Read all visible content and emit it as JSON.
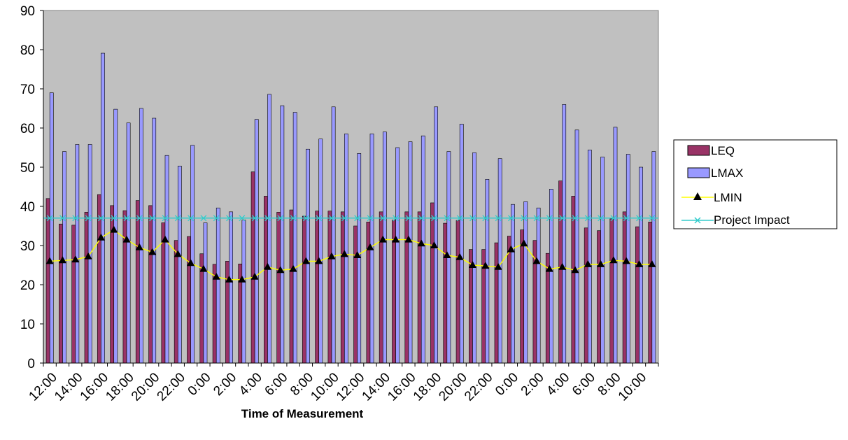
{
  "chart_data": {
    "type": "bar",
    "title": "",
    "xlabel": "Time  of Measurement",
    "ylabel": "",
    "ylim": [
      0,
      90
    ],
    "yticks": [
      0,
      10,
      20,
      30,
      40,
      50,
      60,
      70,
      80,
      90
    ],
    "grid": false,
    "legend_position": "right",
    "plot_background": "#c0c0c0",
    "x_tick_labels": [
      "12:00",
      "14:00",
      "16:00",
      "18:00",
      "20:00",
      "22:00",
      "0:00",
      "2:00",
      "4:00",
      "6:00",
      "8:00",
      "10:00",
      "12:00",
      "14:00",
      "16:00",
      "18:00",
      "20:00",
      "22:00",
      "0:00",
      "2:00",
      "4:00",
      "6:00",
      "8:00",
      "10:00"
    ],
    "series": [
      {
        "name": "LEQ",
        "kind": "bar",
        "color": "#993366",
        "values": [
          42.0,
          35.5,
          35.2,
          38.5,
          43.0,
          40.2,
          38.9,
          41.5,
          40.2,
          35.8,
          31.3,
          32.3,
          27.9,
          25.2,
          26.0,
          25.3,
          48.8,
          42.6,
          38.5,
          39.1,
          37.5,
          38.8,
          38.8,
          38.6,
          35.0,
          36.0,
          38.6,
          36.5,
          38.6,
          38.6,
          40.9,
          35.7,
          36.4,
          29.0,
          29.0,
          30.7,
          32.4,
          34.0,
          31.3,
          28.0,
          46.5,
          42.6,
          34.5,
          33.8,
          36.8,
          38.6,
          34.8,
          36.0
        ]
      },
      {
        "name": "LMAX",
        "kind": "bar",
        "color": "#9999ff",
        "values": [
          69.0,
          54.0,
          55.8,
          55.8,
          79.1,
          64.8,
          61.3,
          65.0,
          62.5,
          53.0,
          50.3,
          55.6,
          35.8,
          39.6,
          38.6,
          36.5,
          62.2,
          68.6,
          65.7,
          64.0,
          54.6,
          57.2,
          65.4,
          58.5,
          53.5,
          58.5,
          59.0,
          55.0,
          56.5,
          58.0,
          65.4,
          54.0,
          61.0,
          53.7,
          46.9,
          52.2,
          40.5,
          41.2,
          39.6,
          44.4,
          66.0,
          59.5,
          54.4,
          52.6,
          60.2,
          53.3,
          50.0,
          54.0
        ]
      },
      {
        "name": "LMIN",
        "kind": "line",
        "color": "#ffff00",
        "marker": "triangle",
        "marker_color": "#000000",
        "values": [
          26.0,
          26.2,
          26.4,
          27.2,
          32.0,
          34.0,
          31.5,
          29.5,
          28.3,
          31.5,
          27.8,
          25.5,
          24.0,
          22.0,
          21.3,
          21.3,
          22.0,
          24.5,
          23.7,
          24.0,
          26.0,
          26.0,
          27.2,
          27.8,
          27.5,
          29.5,
          31.5,
          31.5,
          31.5,
          30.5,
          30.0,
          27.5,
          27.0,
          25.0,
          24.8,
          24.5,
          29.0,
          30.5,
          26.0,
          24.0,
          24.5,
          23.7,
          25.2,
          25.2,
          26.2,
          26.0,
          25.2,
          25.2
        ]
      },
      {
        "name": "Project Impact",
        "kind": "line",
        "color": "#33cccc",
        "marker": "x",
        "value": 37
      }
    ]
  },
  "legend": [
    {
      "name": "LEQ"
    },
    {
      "name": "LMAX"
    },
    {
      "name": "LMIN"
    },
    {
      "name": "Project Impact"
    }
  ]
}
